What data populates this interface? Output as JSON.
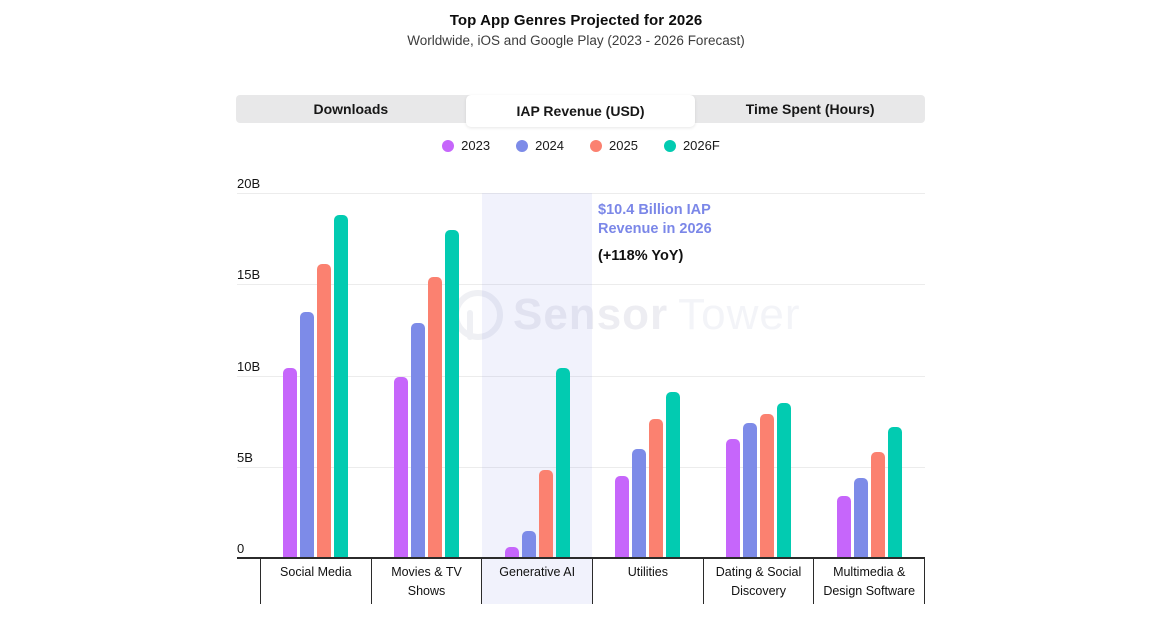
{
  "header": {
    "title": "Top App Genres Projected for 2026",
    "subtitle": "Worldwide, iOS and Google Play (2023 - 2026 Forecast)"
  },
  "tabs": [
    {
      "label": "Downloads",
      "active": false
    },
    {
      "label": "IAP Revenue (USD)",
      "active": true
    },
    {
      "label": "Time Spent (Hours)",
      "active": false
    }
  ],
  "legend": [
    {
      "label": "2023",
      "color": "#c666fb"
    },
    {
      "label": "2024",
      "color": "#7d8be8"
    },
    {
      "label": "2025",
      "color": "#fb8170"
    },
    {
      "label": "2026F",
      "color": "#02cbb1"
    }
  ],
  "annotation": {
    "line1": "$10.4 Billion IAP",
    "line2": "Revenue in 2026",
    "line3": "(+118% YoY)",
    "color": "#7b87e8"
  },
  "watermark": {
    "part1": "Sensor",
    "part2": "Tower"
  },
  "chart_data": {
    "type": "bar",
    "title": "Top App Genres Projected for 2026",
    "subtitle": "Worldwide, iOS and Google Play (2023 - 2026 Forecast)",
    "metric": "IAP Revenue (USD)",
    "categories": [
      "Social Media",
      "Movies & TV Shows",
      "Generative AI",
      "Utilities",
      "Dating & Social Discovery",
      "Multimedia & Design Software"
    ],
    "series": [
      {
        "name": "2023",
        "color": "#c666fb",
        "values": [
          10.4,
          9.9,
          0.6,
          4.5,
          6.5,
          3.4
        ]
      },
      {
        "name": "2024",
        "color": "#7d8be8",
        "values": [
          13.5,
          12.9,
          1.5,
          6.0,
          7.4,
          4.4
        ]
      },
      {
        "name": "2025",
        "color": "#fb8170",
        "values": [
          16.1,
          15.4,
          4.8,
          7.6,
          7.9,
          5.8
        ]
      },
      {
        "name": "2026F",
        "color": "#02cbb1",
        "values": [
          18.8,
          18.0,
          10.4,
          9.1,
          8.5,
          7.2
        ]
      }
    ],
    "unit": "B",
    "ylim": [
      0,
      20
    ],
    "yticks": [
      "0",
      "5B",
      "10B",
      "15B",
      "20B"
    ],
    "grid": true,
    "legend_position": "top",
    "highlighted_category": "Generative AI",
    "highlight_band_color": "rgba(125,139,232,0.11)"
  }
}
